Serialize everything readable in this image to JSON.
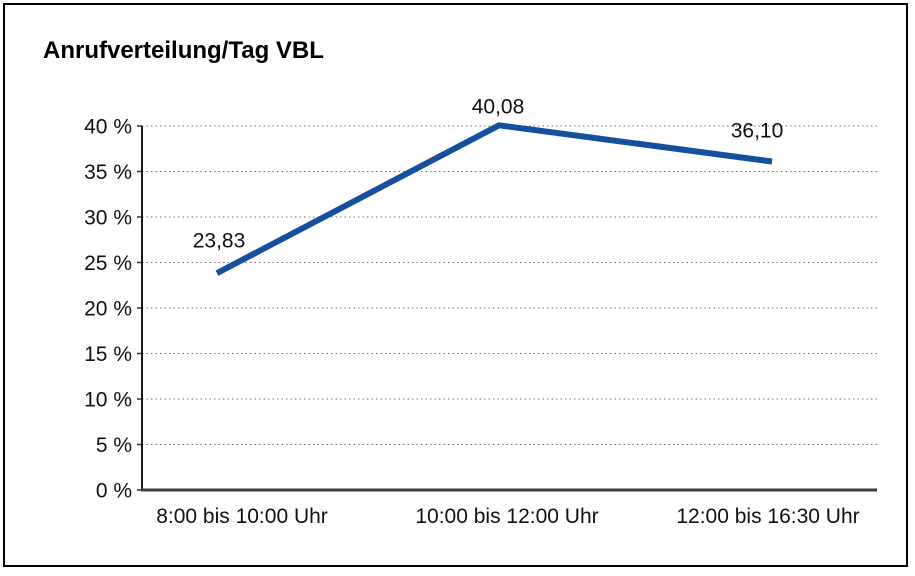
{
  "chart_data": {
    "type": "line",
    "title": "Anrufverteilung/Tag VBL",
    "categories": [
      "8:00 bis 10:00 Uhr",
      "10:00 bis 12:00 Uhr",
      "12:00 bis 16:30 Uhr"
    ],
    "values": [
      23.83,
      40.08,
      36.1
    ],
    "data_labels": [
      "23,83",
      "40,08",
      "36,10"
    ],
    "y_tick_values": [
      0,
      5,
      10,
      15,
      20,
      25,
      30,
      35,
      40
    ],
    "y_tick_labels": [
      "0 %",
      "5 %",
      "10 %",
      "15 %",
      "20 %",
      "25 %",
      "30 %",
      "35 %",
      "40 %"
    ],
    "ylim": [
      0,
      40
    ],
    "xlabel": "",
    "ylabel": "",
    "legend": "none",
    "grid": "horizontal-dotted",
    "line_color": "#15509E",
    "grid_color": "#707070",
    "axis_color": "#333333",
    "text_color": "#111111"
  }
}
